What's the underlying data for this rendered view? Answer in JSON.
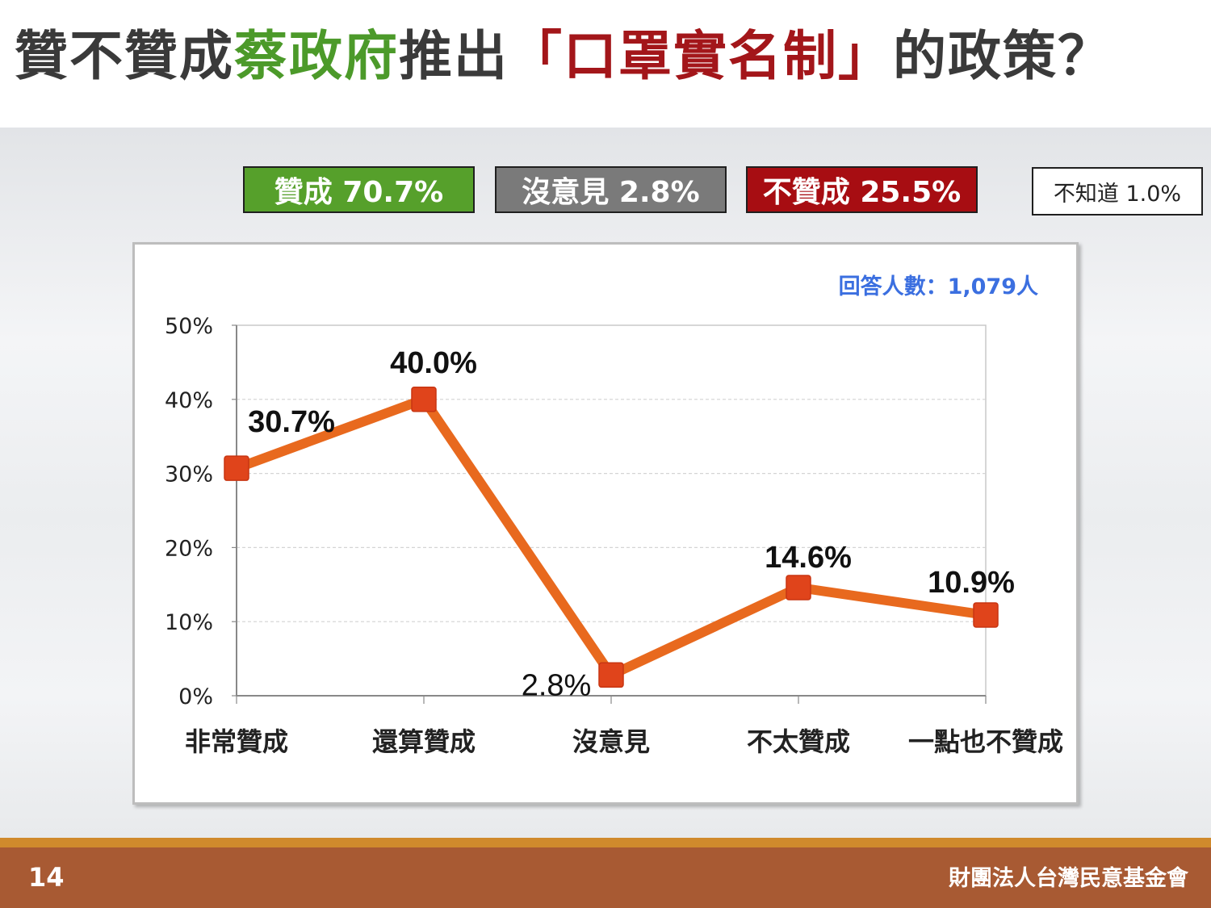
{
  "title": {
    "part1": "贊不贊成",
    "part2": "蔡政府",
    "part3": "推出",
    "part4": "「口罩實名制」",
    "part5": "的政策？"
  },
  "badges": {
    "approve": "贊成 70.7%",
    "neutral": "沒意見 2.8%",
    "oppose": "不贊成 25.5%",
    "unknown": "不知道 1.0%"
  },
  "colors": {
    "approve": "#56a02b",
    "neutral": "#7a7a7a",
    "oppose": "#a70d12",
    "line": "#e8691e",
    "marker": "#e0441b",
    "note": "#3b6fe0"
  },
  "chart_data": {
    "type": "line",
    "categories": [
      "非常贊成",
      "還算贊成",
      "沒意見",
      "不太贊成",
      "一點也不贊成"
    ],
    "values": [
      30.7,
      40.0,
      2.8,
      14.6,
      10.9
    ],
    "data_labels": [
      "30.7%",
      "40.0%",
      "2.8%",
      "14.6%",
      "10.9%"
    ],
    "ylim": [
      0,
      50
    ],
    "y_ticks": [
      "0%",
      "10%",
      "20%",
      "30%",
      "40%",
      "50%"
    ],
    "grid": true,
    "note": "回答人數：1,079人",
    "title": "",
    "xlabel": "",
    "ylabel": ""
  },
  "footer": {
    "page_number": "14",
    "organization": "財團法人台灣民意基金會"
  }
}
